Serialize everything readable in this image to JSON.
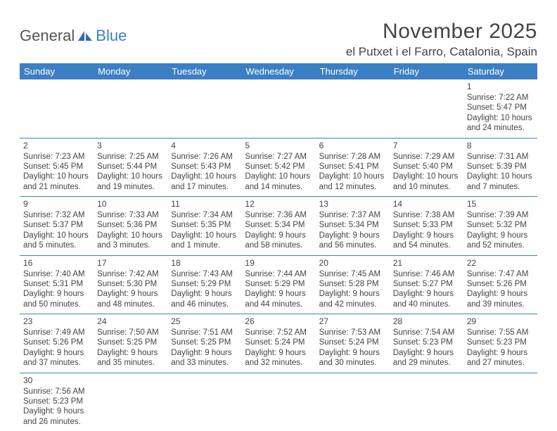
{
  "brand": {
    "general": "General",
    "blue": "Blue"
  },
  "title": "November 2025",
  "location": "el Putxet i el Farro, Catalonia, Spain",
  "colors": {
    "header_bg": "#3b7fc4",
    "header_text": "#ffffff",
    "row_border": "#3b7fc4",
    "body_text": "#444444",
    "page_bg": "#ffffff"
  },
  "weekdays": [
    "Sunday",
    "Monday",
    "Tuesday",
    "Wednesday",
    "Thursday",
    "Friday",
    "Saturday"
  ],
  "weeks": [
    [
      null,
      null,
      null,
      null,
      null,
      null,
      {
        "n": "1",
        "sr": "7:22 AM",
        "ss": "5:47 PM",
        "dl": "10 hours and 24 minutes."
      }
    ],
    [
      {
        "n": "2",
        "sr": "7:23 AM",
        "ss": "5:45 PM",
        "dl": "10 hours and 21 minutes."
      },
      {
        "n": "3",
        "sr": "7:25 AM",
        "ss": "5:44 PM",
        "dl": "10 hours and 19 minutes."
      },
      {
        "n": "4",
        "sr": "7:26 AM",
        "ss": "5:43 PM",
        "dl": "10 hours and 17 minutes."
      },
      {
        "n": "5",
        "sr": "7:27 AM",
        "ss": "5:42 PM",
        "dl": "10 hours and 14 minutes."
      },
      {
        "n": "6",
        "sr": "7:28 AM",
        "ss": "5:41 PM",
        "dl": "10 hours and 12 minutes."
      },
      {
        "n": "7",
        "sr": "7:29 AM",
        "ss": "5:40 PM",
        "dl": "10 hours and 10 minutes."
      },
      {
        "n": "8",
        "sr": "7:31 AM",
        "ss": "5:39 PM",
        "dl": "10 hours and 7 minutes."
      }
    ],
    [
      {
        "n": "9",
        "sr": "7:32 AM",
        "ss": "5:37 PM",
        "dl": "10 hours and 5 minutes."
      },
      {
        "n": "10",
        "sr": "7:33 AM",
        "ss": "5:36 PM",
        "dl": "10 hours and 3 minutes."
      },
      {
        "n": "11",
        "sr": "7:34 AM",
        "ss": "5:35 PM",
        "dl": "10 hours and 1 minute."
      },
      {
        "n": "12",
        "sr": "7:36 AM",
        "ss": "5:34 PM",
        "dl": "9 hours and 58 minutes."
      },
      {
        "n": "13",
        "sr": "7:37 AM",
        "ss": "5:34 PM",
        "dl": "9 hours and 56 minutes."
      },
      {
        "n": "14",
        "sr": "7:38 AM",
        "ss": "5:33 PM",
        "dl": "9 hours and 54 minutes."
      },
      {
        "n": "15",
        "sr": "7:39 AM",
        "ss": "5:32 PM",
        "dl": "9 hours and 52 minutes."
      }
    ],
    [
      {
        "n": "16",
        "sr": "7:40 AM",
        "ss": "5:31 PM",
        "dl": "9 hours and 50 minutes."
      },
      {
        "n": "17",
        "sr": "7:42 AM",
        "ss": "5:30 PM",
        "dl": "9 hours and 48 minutes."
      },
      {
        "n": "18",
        "sr": "7:43 AM",
        "ss": "5:29 PM",
        "dl": "9 hours and 46 minutes."
      },
      {
        "n": "19",
        "sr": "7:44 AM",
        "ss": "5:29 PM",
        "dl": "9 hours and 44 minutes."
      },
      {
        "n": "20",
        "sr": "7:45 AM",
        "ss": "5:28 PM",
        "dl": "9 hours and 42 minutes."
      },
      {
        "n": "21",
        "sr": "7:46 AM",
        "ss": "5:27 PM",
        "dl": "9 hours and 40 minutes."
      },
      {
        "n": "22",
        "sr": "7:47 AM",
        "ss": "5:26 PM",
        "dl": "9 hours and 39 minutes."
      }
    ],
    [
      {
        "n": "23",
        "sr": "7:49 AM",
        "ss": "5:26 PM",
        "dl": "9 hours and 37 minutes."
      },
      {
        "n": "24",
        "sr": "7:50 AM",
        "ss": "5:25 PM",
        "dl": "9 hours and 35 minutes."
      },
      {
        "n": "25",
        "sr": "7:51 AM",
        "ss": "5:25 PM",
        "dl": "9 hours and 33 minutes."
      },
      {
        "n": "26",
        "sr": "7:52 AM",
        "ss": "5:24 PM",
        "dl": "9 hours and 32 minutes."
      },
      {
        "n": "27",
        "sr": "7:53 AM",
        "ss": "5:24 PM",
        "dl": "9 hours and 30 minutes."
      },
      {
        "n": "28",
        "sr": "7:54 AM",
        "ss": "5:23 PM",
        "dl": "9 hours and 29 minutes."
      },
      {
        "n": "29",
        "sr": "7:55 AM",
        "ss": "5:23 PM",
        "dl": "9 hours and 27 minutes."
      }
    ],
    [
      {
        "n": "30",
        "sr": "7:56 AM",
        "ss": "5:23 PM",
        "dl": "9 hours and 26 minutes."
      },
      null,
      null,
      null,
      null,
      null,
      null
    ]
  ],
  "labels": {
    "sunrise": "Sunrise: ",
    "sunset": "Sunset: ",
    "daylight": "Daylight: "
  }
}
